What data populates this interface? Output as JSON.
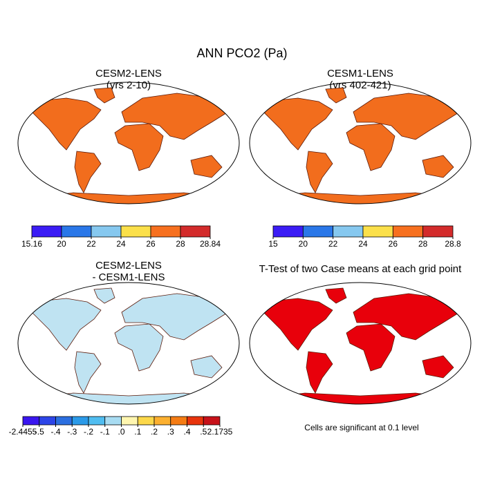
{
  "title": "ANN PCO2 (Pa)",
  "panels": [
    {
      "title": [
        "CESM2-LENS",
        "(yrs 2-10)"
      ],
      "fill": "#f26d1d",
      "colorbar": {
        "ticks": [
          15.16,
          20,
          22,
          24,
          26,
          28,
          28.84
        ],
        "colors": [
          "#3b1cf5",
          "#2a77e8",
          "#86c8ef",
          "#fbe04a",
          "#f7701f",
          "#d32b2b"
        ]
      }
    },
    {
      "title": [
        "CESM1-LENS",
        "(yrs 402-421)"
      ],
      "fill": "#f26d1d",
      "colorbar": {
        "ticks": [
          15,
          20,
          22,
          24,
          26,
          28,
          28.8
        ],
        "colors": [
          "#3b1cf5",
          "#2a77e8",
          "#86c8ef",
          "#fbe04a",
          "#f7701f",
          "#d32b2b"
        ]
      }
    },
    {
      "title": [
        "CESM2-LENS",
        "- CESM1-LENS"
      ],
      "fill": "#bfe3f2",
      "colorbar": {
        "ticks": [
          -2.4455,
          {
            "value": -0.5,
            "label": "-.5"
          },
          {
            "value": -0.4,
            "label": "-.4"
          },
          {
            "value": -0.3,
            "label": "-.3"
          },
          {
            "value": -0.2,
            "label": "-.2"
          },
          {
            "value": -0.1,
            "label": "-.1"
          },
          {
            "value": 0,
            "label": ".0"
          },
          {
            "value": 0.1,
            "label": ".1"
          },
          {
            "value": 0.2,
            "label": ".2"
          },
          {
            "value": 0.3,
            "label": ".3"
          },
          {
            "value": 0.4,
            "label": ".4"
          },
          {
            "value": 0.5,
            "label": ".5"
          },
          2.1735
        ],
        "colors": [
          "#3a16f0",
          "#2d45e8",
          "#2b6fe0",
          "#2b9ae8",
          "#50bdf0",
          "#a8dcf2",
          "#fff6b0",
          "#fcd84a",
          "#fcb030",
          "#f57c14",
          "#e8340c",
          "#c7121a"
        ]
      }
    },
    {
      "title": [
        "T-Test of two Case means at each grid point"
      ],
      "fill": "#e8000b",
      "footnote": "Cells are significant at 0.1 level"
    }
  ]
}
